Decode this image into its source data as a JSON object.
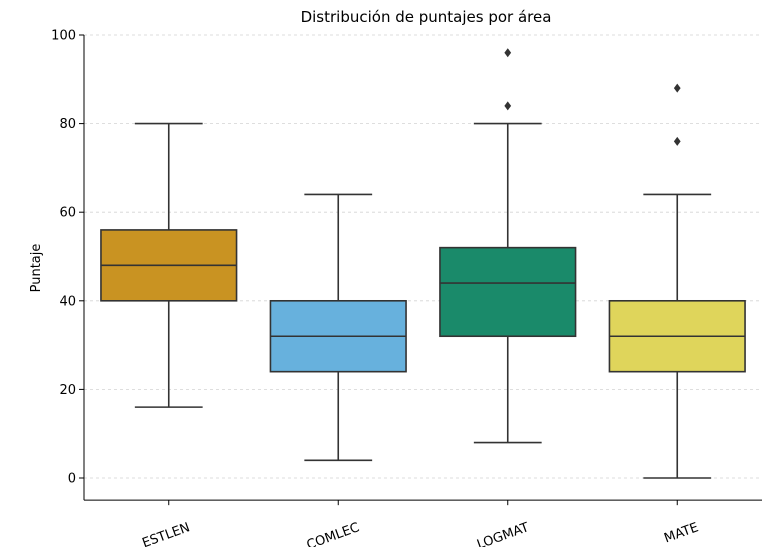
{
  "chart_data": {
    "type": "box",
    "title": "Distribución de puntajes por área",
    "xlabel": "",
    "ylabel": "Puntaje",
    "ylim": [
      -5,
      100
    ],
    "yticks": [
      0,
      20,
      40,
      60,
      80,
      100
    ],
    "grid": "horizontal-dashed",
    "categories": [
      "ESTLEN",
      "COMLEC",
      "LOGMAT",
      "MATE"
    ],
    "colors": [
      "#c99322",
      "#67b1dd",
      "#1a8a6a",
      "#dfd55b"
    ],
    "boxes": [
      {
        "name": "ESTLEN",
        "whisker_low": 16,
        "q1": 40,
        "median": 48,
        "q3": 56,
        "whisker_high": 80,
        "outliers": []
      },
      {
        "name": "COMLEC",
        "whisker_low": 4,
        "q1": 24,
        "median": 32,
        "q3": 40,
        "whisker_high": 64,
        "outliers": []
      },
      {
        "name": "LOGMAT",
        "whisker_low": 8,
        "q1": 32,
        "median": 44,
        "q3": 52,
        "whisker_high": 80,
        "outliers": [
          84,
          96
        ]
      },
      {
        "name": "MATE",
        "whisker_low": 0,
        "q1": 24,
        "median": 32,
        "q3": 40,
        "whisker_high": 64,
        "outliers": [
          76,
          88
        ]
      }
    ]
  }
}
